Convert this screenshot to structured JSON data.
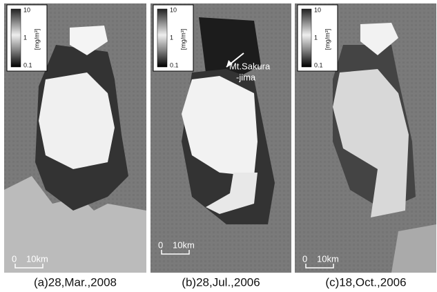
{
  "panels": [
    {
      "caption": "(a)28,Mar.,2008",
      "colorbar": {
        "ticks": [
          "10",
          "1",
          "0.1"
        ],
        "unit": "[mg/m³]"
      },
      "scale_bar": {
        "start": "0",
        "end": "10km"
      }
    },
    {
      "caption": "(b)28,Jul.,2006",
      "colorbar": {
        "ticks": [
          "10",
          "1",
          "0.1"
        ],
        "unit": "[mg/m³]"
      },
      "scale_bar": {
        "start": "0",
        "end": "10km"
      }
    },
    {
      "caption": "(c)18,Oct.,2006",
      "colorbar": {
        "ticks": [
          "10",
          "1",
          "0.1"
        ],
        "unit": "[mg/m³]"
      },
      "scale_bar": {
        "start": "0",
        "end": "10km"
      }
    }
  ],
  "annotation": {
    "lines": [
      "Mt.Sakura",
      "-jima"
    ]
  }
}
